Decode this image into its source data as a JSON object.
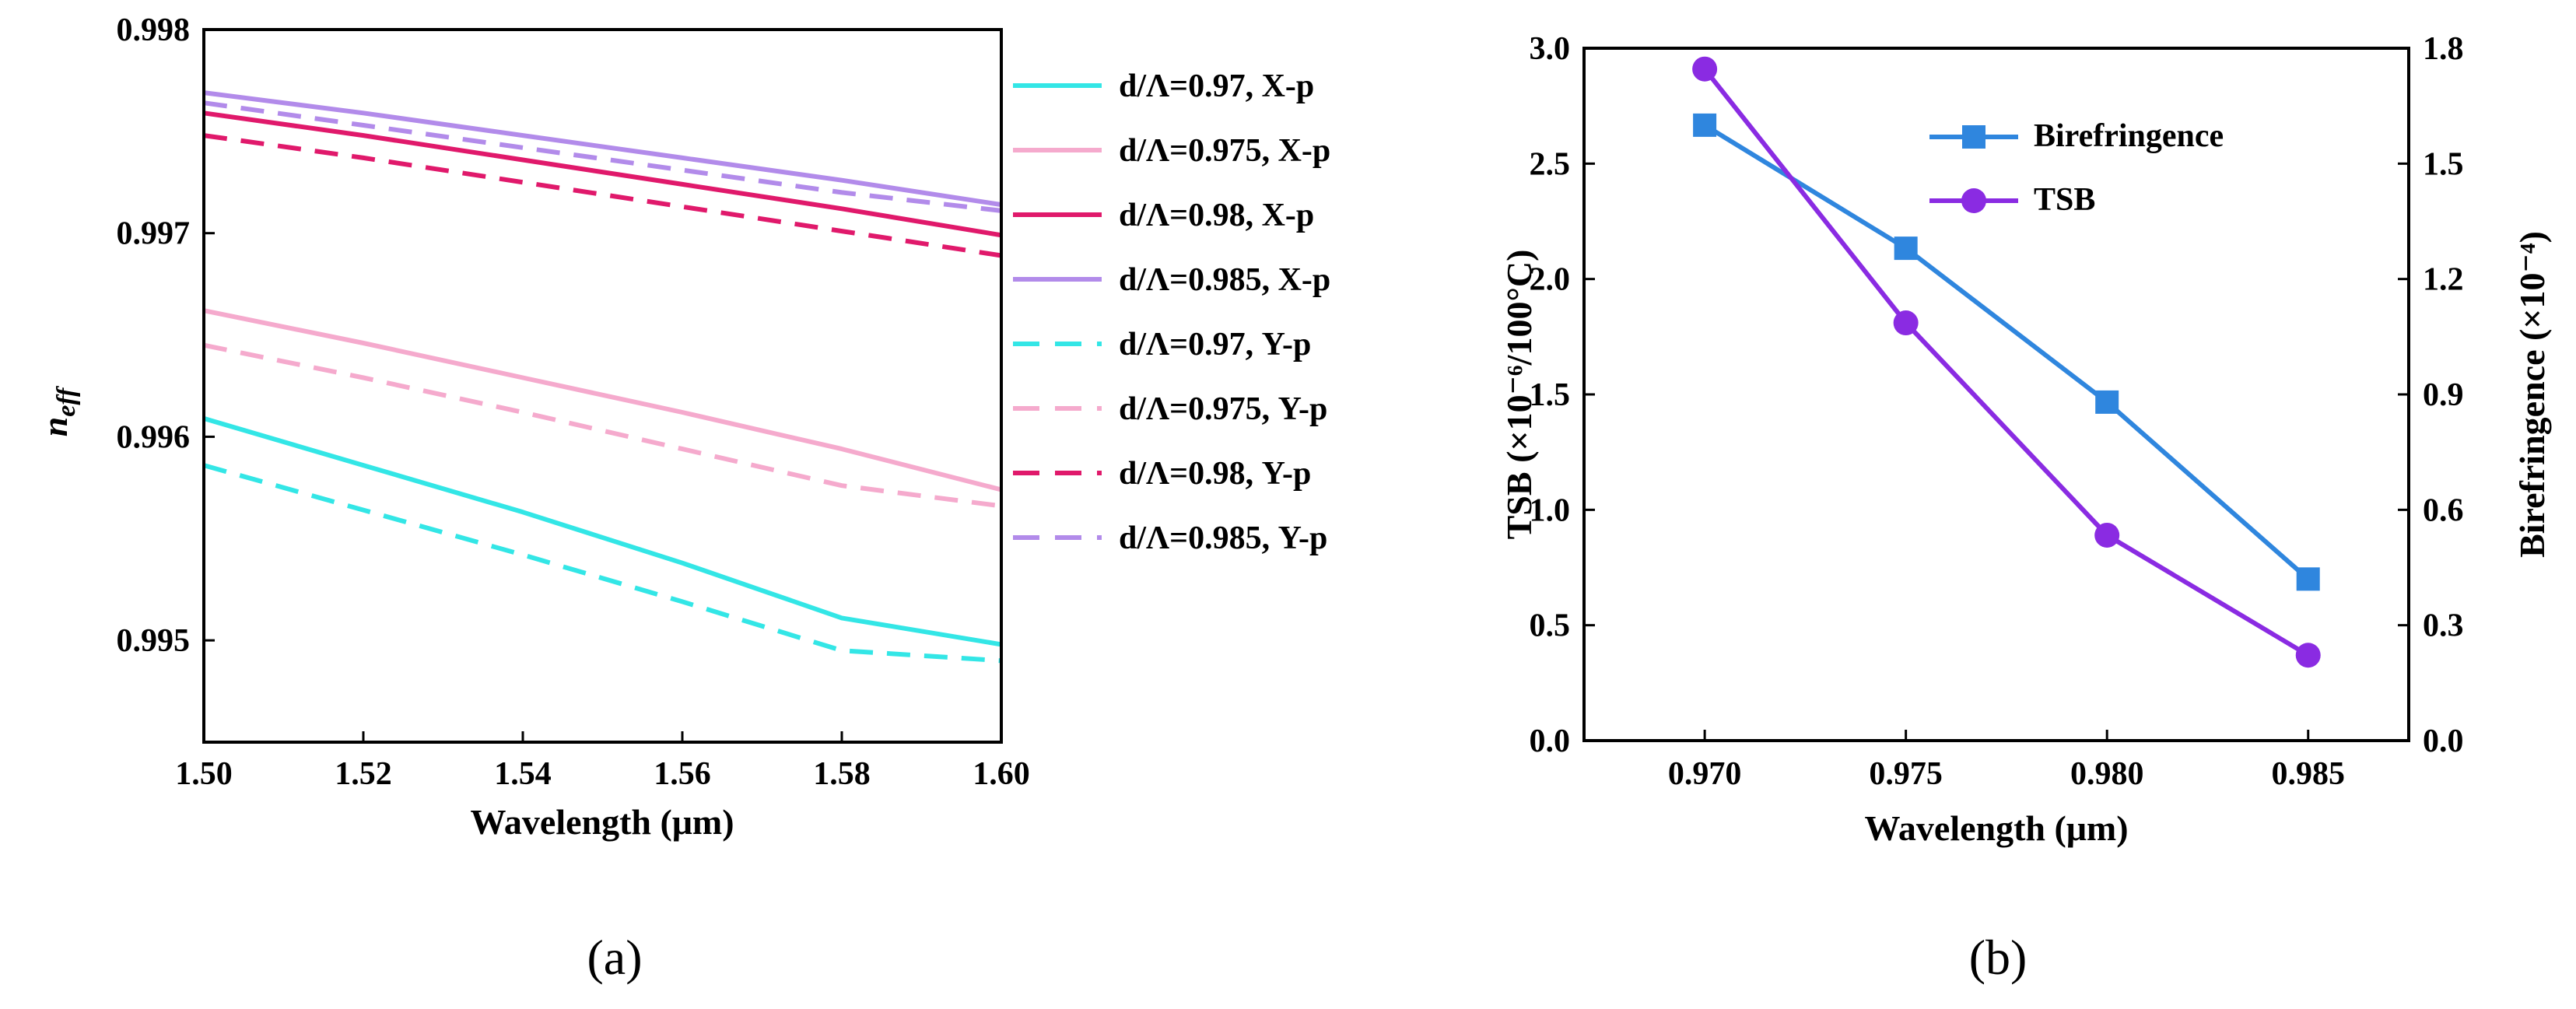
{
  "figure": {
    "panel_a_label": "(a)",
    "panel_b_label": "(b)"
  },
  "chart_data": [
    {
      "type": "line",
      "panel": "(a)",
      "title": "",
      "xlabel": "Wavelength (μm)",
      "ylabel": "n_eff",
      "ylabel_base": "n",
      "ylabel_sub": "eff",
      "xlim": [
        1.5,
        1.6
      ],
      "ylim": [
        0.9945,
        0.998
      ],
      "xticks": [
        1.5,
        1.52,
        1.54,
        1.56,
        1.58,
        1.6
      ],
      "xtick_labels": [
        "1.50",
        "1.52",
        "1.54",
        "1.56",
        "1.58",
        "1.60"
      ],
      "yticks": [
        0.995,
        0.996,
        0.997,
        0.998
      ],
      "ytick_labels": [
        "0.995",
        "0.996",
        "0.997",
        "0.998"
      ],
      "grid": false,
      "legend_position": "right-outside",
      "x": [
        1.5,
        1.52,
        1.54,
        1.56,
        1.58,
        1.6
      ],
      "series": [
        {
          "name": "d/Λ=0.97, X-p",
          "color": "#33e6e6",
          "dash": "solid",
          "values": [
            0.99609,
            0.99586,
            0.99563,
            0.99538,
            0.99511,
            0.99498
          ]
        },
        {
          "name": "d/Λ=0.975, X-p",
          "color": "#f5aacd",
          "dash": "solid",
          "values": [
            0.99662,
            0.99646,
            0.99629,
            0.99612,
            0.99594,
            0.99574
          ]
        },
        {
          "name": "d/Λ=0.98, X-p",
          "color": "#e0196b",
          "dash": "solid",
          "values": [
            0.99759,
            0.99748,
            0.99736,
            0.99724,
            0.99712,
            0.99699
          ]
        },
        {
          "name": "d/Λ=0.985, X-p",
          "color": "#b28bea",
          "dash": "solid",
          "values": [
            0.99769,
            0.99759,
            0.99748,
            0.99737,
            0.99726,
            0.99714
          ]
        },
        {
          "name": "d/Λ=0.97, Y-p",
          "color": "#33e6e6",
          "dash": "dashed",
          "values": [
            0.99586,
            0.99564,
            0.99542,
            0.99519,
            0.99495,
            0.9949
          ]
        },
        {
          "name": "d/Λ=0.975, Y-p",
          "color": "#f5aacd",
          "dash": "dashed",
          "values": [
            0.99645,
            0.99629,
            0.99612,
            0.99594,
            0.99576,
            0.99566
          ]
        },
        {
          "name": "d/Λ=0.98, Y-p",
          "color": "#e0196b",
          "dash": "dashed",
          "values": [
            0.99748,
            0.99737,
            0.99725,
            0.99713,
            0.99701,
            0.99689
          ]
        },
        {
          "name": "d/Λ=0.985, Y-p",
          "color": "#b28bea",
          "dash": "dashed",
          "values": [
            0.99764,
            0.99753,
            0.99742,
            0.99731,
            0.9972,
            0.99711
          ]
        }
      ]
    },
    {
      "type": "line",
      "panel": "(b)",
      "title": "",
      "xlabel": "Wavelength (μm)",
      "ylabel_left": "TSB (×10⁻⁶/100°C)",
      "ylabel_right": "Birefringence (×10⁻⁴)",
      "xlim": [
        0.967,
        0.9875
      ],
      "ylim_left": [
        0.0,
        3.0
      ],
      "ylim_right": [
        0.0,
        1.8
      ],
      "x": [
        0.97,
        0.975,
        0.98,
        0.985
      ],
      "xtick_labels": [
        "0.970",
        "0.975",
        "0.980",
        "0.985"
      ],
      "yticks_left": [
        0.0,
        0.5,
        1.0,
        1.5,
        2.0,
        2.5,
        3.0
      ],
      "ytick_labels_left": [
        "0.0",
        "0.5",
        "1.0",
        "1.5",
        "2.0",
        "2.5",
        "3.0"
      ],
      "yticks_right": [
        0.0,
        0.3,
        0.6,
        0.9,
        1.2,
        1.5,
        1.8
      ],
      "ytick_labels_right": [
        "0.0",
        "0.3",
        "0.6",
        "0.9",
        "1.2",
        "1.5",
        "1.8"
      ],
      "grid": false,
      "legend_position": "top-center",
      "series": [
        {
          "name": "Birefringence",
          "axis": "right",
          "color": "#2f86de",
          "marker": "square",
          "values": [
            1.6,
            1.28,
            0.88,
            0.42
          ]
        },
        {
          "name": "TSB",
          "axis": "left",
          "color": "#8a2be2",
          "marker": "circle",
          "values": [
            2.91,
            1.81,
            0.89,
            0.37
          ]
        }
      ]
    }
  ]
}
